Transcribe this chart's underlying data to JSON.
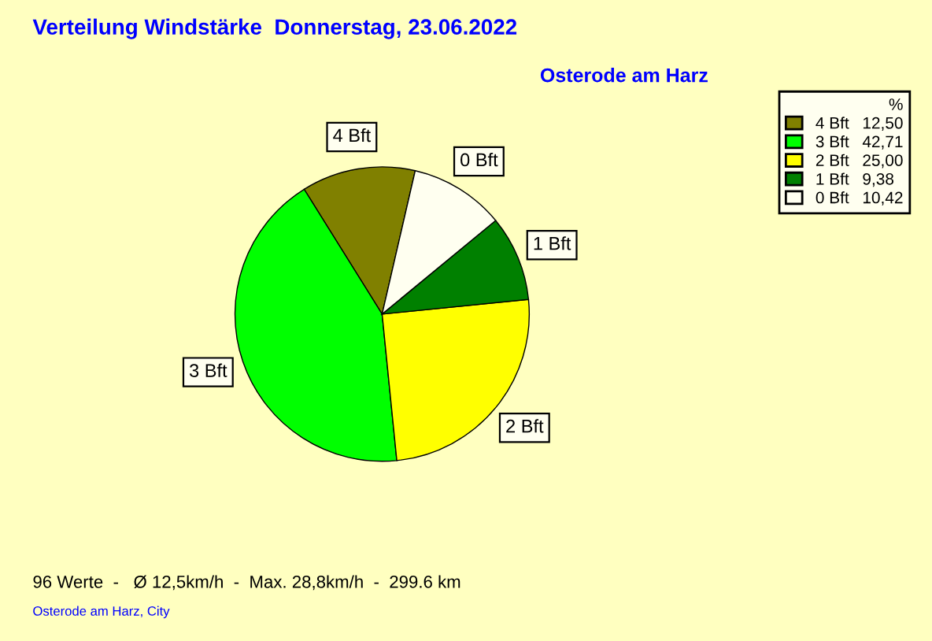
{
  "chart_data": {
    "type": "pie",
    "title": "Verteilung Windstärke  Donnerstag, 23.06.2022",
    "subtitle": "Osterode am Harz",
    "categories": [
      "4 Bft",
      "3 Bft",
      "2 Bft",
      "1 Bft",
      "0 Bft"
    ],
    "values": [
      12.5,
      42.71,
      25.0,
      9.38,
      10.42
    ],
    "value_labels": [
      "12,50",
      "42,71",
      "25,00",
      "9,38",
      "10,42"
    ],
    "colors": [
      "#808000",
      "#00ff00",
      "#ffff00",
      "#008000",
      "#fffff0"
    ],
    "legend": "top right",
    "legend_title": "%",
    "annotations": [
      "96 Werte  -   Ø 12,5km/h  -  Max. 28,8km/h  -  299.6 km",
      "Osterode am Harz, City"
    ]
  }
}
